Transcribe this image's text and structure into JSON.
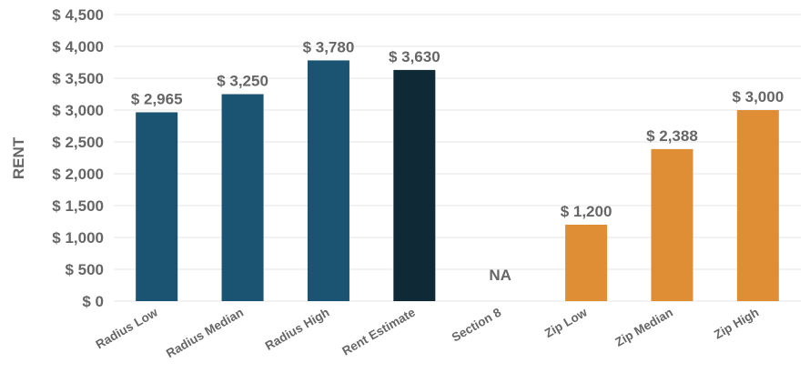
{
  "chart_data": {
    "type": "bar",
    "ylabel": "RENT",
    "xlabel": "",
    "title": "",
    "ylim": [
      0,
      4500
    ],
    "y_tick_step": 500,
    "y_tick_labels": [
      "$ 0",
      "$ 500",
      "$ 1,000",
      "$ 1,500",
      "$ 2,000",
      "$ 2,500",
      "$ 3,000",
      "$ 3,500",
      "$ 4,000",
      "$ 4,500"
    ],
    "grid": true,
    "categories": [
      "Radius Low",
      "Radius Median",
      "Radius High",
      "Rent Estimate",
      "Section 8",
      "Zip Low",
      "Zip Median",
      "Zip High"
    ],
    "values": [
      2965,
      3250,
      3780,
      3630,
      null,
      1200,
      2388,
      3000
    ],
    "data_labels": [
      "$ 2,965",
      "$ 3,250",
      "$ 3,780",
      "$ 3,630",
      "NA",
      "$ 1,200",
      "$ 2,388",
      "$ 3,000"
    ],
    "bar_colors": [
      "#1a5472",
      "#1a5472",
      "#1a5472",
      "#0f2a36",
      "#1a5472",
      "#e08e35",
      "#e08e35",
      "#e08e35"
    ]
  }
}
